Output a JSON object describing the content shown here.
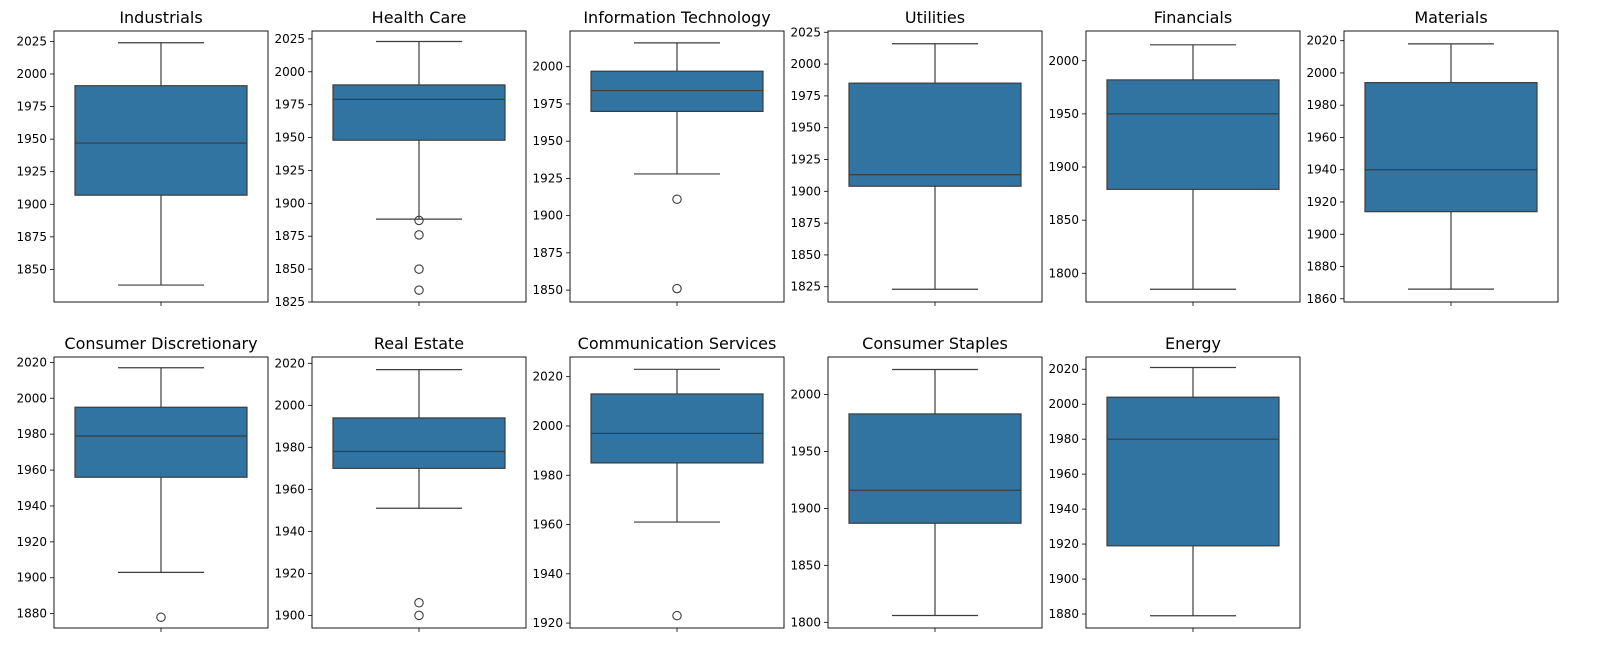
{
  "colors": {
    "box": "#3274a1",
    "line": "#3c3c3c",
    "frame": "#000000"
  },
  "chart_data": [
    {
      "type": "box",
      "title": "Industrials",
      "ylim": [
        1825,
        2033
      ],
      "yticks": [
        1850,
        1875,
        1900,
        1925,
        1950,
        1975,
        2000,
        2025
      ],
      "whisker_low": 1838,
      "q1": 1907,
      "median": 1947,
      "q3": 1991,
      "whisker_high": 2024,
      "outliers": []
    },
    {
      "type": "box",
      "title": "Health Care",
      "ylim": [
        1825,
        2031
      ],
      "yticks": [
        1825,
        1850,
        1875,
        1900,
        1925,
        1950,
        1975,
        2000,
        2025
      ],
      "whisker_low": 1888,
      "q1": 1948,
      "median": 1979,
      "q3": 1990,
      "whisker_high": 2023,
      "outliers": [
        1887,
        1876,
        1850,
        1834
      ]
    },
    {
      "type": "box",
      "title": "Information Technology",
      "ylim": [
        1842,
        2024
      ],
      "yticks": [
        1850,
        1875,
        1900,
        1925,
        1950,
        1975,
        2000
      ],
      "whisker_low": 1928,
      "q1": 1970,
      "median": 1984,
      "q3": 1997,
      "whisker_high": 2016,
      "outliers": [
        1911,
        1851
      ]
    },
    {
      "type": "box",
      "title": "Utilities",
      "ylim": [
        1813,
        2026
      ],
      "yticks": [
        1825,
        1850,
        1875,
        1900,
        1925,
        1950,
        1975,
        2000,
        2025
      ],
      "whisker_low": 1823,
      "q1": 1904,
      "median": 1913,
      "q3": 1985,
      "whisker_high": 2016,
      "outliers": []
    },
    {
      "type": "box",
      "title": "Financials",
      "ylim": [
        1773,
        2028
      ],
      "yticks": [
        1800,
        1850,
        1900,
        1950,
        2000
      ],
      "whisker_low": 1785,
      "q1": 1879,
      "median": 1950,
      "q3": 1982,
      "whisker_high": 2015,
      "outliers": []
    },
    {
      "type": "box",
      "title": "Materials",
      "ylim": [
        1858,
        2026
      ],
      "yticks": [
        1860,
        1880,
        1900,
        1920,
        1940,
        1960,
        1980,
        2000,
        2020
      ],
      "whisker_low": 1866,
      "q1": 1914,
      "median": 1940,
      "q3": 1994,
      "whisker_high": 2018,
      "outliers": []
    },
    {
      "type": "box",
      "title": "Consumer Discretionary",
      "ylim": [
        1872,
        2023
      ],
      "yticks": [
        1880,
        1900,
        1920,
        1940,
        1960,
        1980,
        2000,
        2020
      ],
      "whisker_low": 1903,
      "q1": 1956,
      "median": 1979,
      "q3": 1995,
      "whisker_high": 2017,
      "outliers": [
        1878
      ]
    },
    {
      "type": "box",
      "title": "Real Estate",
      "ylim": [
        1894,
        2023
      ],
      "yticks": [
        1900,
        1920,
        1940,
        1960,
        1980,
        2000,
        2020
      ],
      "whisker_low": 1951,
      "q1": 1970,
      "median": 1978,
      "q3": 1994,
      "whisker_high": 2017,
      "outliers": [
        1906,
        1900
      ]
    },
    {
      "type": "box",
      "title": "Communication Services",
      "ylim": [
        1918,
        2028
      ],
      "yticks": [
        1920,
        1940,
        1960,
        1980,
        2000,
        2020
      ],
      "whisker_low": 1961,
      "q1": 1985,
      "median": 1997,
      "q3": 2013,
      "whisker_high": 2023,
      "outliers": [
        1923
      ]
    },
    {
      "type": "box",
      "title": "Consumer Staples",
      "ylim": [
        1795,
        2033
      ],
      "yticks": [
        1800,
        1850,
        1900,
        1950,
        2000
      ],
      "whisker_low": 1806,
      "q1": 1887,
      "median": 1916,
      "q3": 1983,
      "whisker_high": 2022,
      "outliers": []
    },
    {
      "type": "box",
      "title": "Energy",
      "ylim": [
        1872,
        2027
      ],
      "yticks": [
        1880,
        1900,
        1920,
        1940,
        1960,
        1980,
        2000,
        2020
      ],
      "whisker_low": 1879,
      "q1": 1919,
      "median": 1980,
      "q3": 2004,
      "whisker_high": 2021,
      "outliers": []
    }
  ]
}
